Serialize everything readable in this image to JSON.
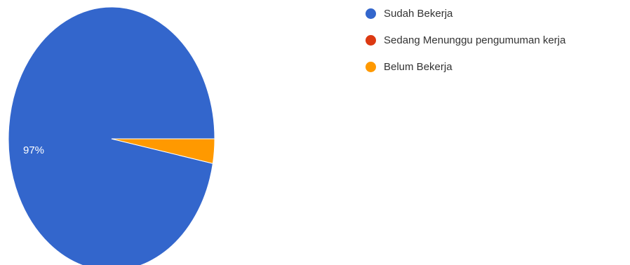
{
  "chart_data": {
    "type": "pie",
    "title": "",
    "categories": [
      "Sudah Bekerja",
      "Sedang Menunggu pengumuman kerja",
      "Belum Bekerja"
    ],
    "values": [
      97,
      0,
      3
    ],
    "unit": "%",
    "colors": [
      "#3366cc",
      "#dc3912",
      "#ff9900"
    ],
    "data_labels": [
      "97%",
      "",
      ""
    ],
    "legend_position": "right"
  }
}
